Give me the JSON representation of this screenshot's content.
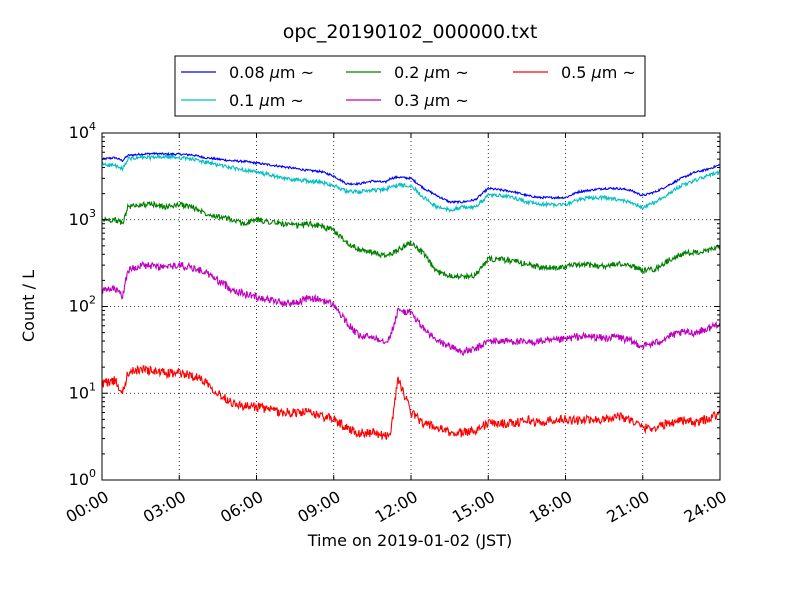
{
  "chart_data": {
    "type": "line",
    "title": "opc_20190102_000000.txt",
    "xlabel": "Time on 2019-01-02 (JST)",
    "ylabel": "Count / L",
    "x_unit": "hours",
    "xlim": [
      0,
      24
    ],
    "ylim": [
      1,
      10000
    ],
    "yscale": "log",
    "grid": true,
    "legend_position": "top-center",
    "x_ticks": [
      0,
      3,
      6,
      9,
      12,
      15,
      18,
      21,
      24
    ],
    "x_tick_labels": [
      "00:00",
      "03:00",
      "06:00",
      "09:00",
      "12:00",
      "15:00",
      "18:00",
      "21:00",
      "24:00"
    ],
    "y_ticks": [
      1,
      10,
      100,
      1000,
      10000
    ],
    "y_tick_labels": [
      {
        "base": "10",
        "exp": "0"
      },
      {
        "base": "10",
        "exp": "1"
      },
      {
        "base": "10",
        "exp": "2"
      },
      {
        "base": "10",
        "exp": "3"
      },
      {
        "base": "10",
        "exp": "4"
      }
    ],
    "x": [
      0,
      0.5,
      0.8,
      1,
      1.5,
      2,
      2.5,
      3,
      3.5,
      4,
      4.5,
      5,
      5.5,
      6,
      6.5,
      7,
      7.5,
      8,
      8.5,
      9,
      9.5,
      10,
      10.5,
      11,
      11.2,
      11.5,
      12,
      12.5,
      13,
      13.5,
      14,
      14.5,
      15,
      15.5,
      16,
      16.5,
      17,
      17.5,
      18,
      18.5,
      19,
      19.5,
      20,
      20.5,
      21,
      21.5,
      22,
      22.5,
      23,
      23.5,
      24
    ],
    "series": [
      {
        "name": "0.08",
        "unit": "μm",
        "suffix": "~",
        "color": "#0000ff",
        "values": [
          5000,
          5200,
          4800,
          5500,
          5700,
          5800,
          5700,
          5700,
          5600,
          5200,
          5000,
          4800,
          4700,
          4500,
          4300,
          4100,
          3900,
          3700,
          3600,
          3200,
          2600,
          2600,
          2800,
          2700,
          3000,
          3100,
          3000,
          2300,
          1900,
          1600,
          1600,
          1700,
          2300,
          2200,
          2100,
          1900,
          1800,
          1800,
          1800,
          2100,
          2200,
          2300,
          2300,
          2200,
          1900,
          2100,
          2500,
          3000,
          3500,
          3800,
          4300
        ]
      },
      {
        "name": "0.1",
        "unit": "μm",
        "suffix": "~",
        "color": "#00bfbf",
        "values": [
          4400,
          4200,
          3800,
          5000,
          5200,
          5200,
          5300,
          5200,
          5000,
          4600,
          4300,
          4000,
          3800,
          3500,
          3300,
          3000,
          2900,
          2800,
          2700,
          2500,
          2100,
          2100,
          2200,
          2200,
          2400,
          2500,
          2500,
          1800,
          1400,
          1300,
          1400,
          1400,
          1900,
          1900,
          1800,
          1600,
          1500,
          1500,
          1500,
          1700,
          1800,
          1800,
          1700,
          1600,
          1400,
          1600,
          2000,
          2500,
          2800,
          3200,
          3500
        ]
      },
      {
        "name": "0.2",
        "unit": "μm",
        "suffix": "~",
        "color": "#008000",
        "values": [
          1000,
          1000,
          900,
          1400,
          1500,
          1500,
          1400,
          1500,
          1400,
          1200,
          1100,
          1000,
          900,
          1000,
          950,
          900,
          850,
          900,
          850,
          750,
          550,
          450,
          420,
          380,
          400,
          450,
          550,
          400,
          250,
          230,
          220,
          230,
          350,
          350,
          330,
          310,
          280,
          280,
          290,
          300,
          300,
          290,
          310,
          300,
          260,
          270,
          340,
          400,
          420,
          430,
          500
        ]
      },
      {
        "name": "0.3",
        "unit": "μm",
        "suffix": "~",
        "color": "#bf00bf",
        "values": [
          150,
          160,
          130,
          260,
          300,
          290,
          280,
          300,
          280,
          250,
          200,
          160,
          140,
          130,
          120,
          110,
          110,
          125,
          120,
          105,
          65,
          45,
          45,
          40,
          45,
          90,
          85,
          55,
          40,
          35,
          30,
          32,
          40,
          40,
          40,
          38,
          40,
          40,
          42,
          45,
          45,
          43,
          45,
          40,
          35,
          38,
          45,
          50,
          50,
          55,
          65
        ]
      },
      {
        "name": "0.5",
        "unit": "μm",
        "suffix": "~",
        "color": "#ff0000",
        "values": [
          13,
          14,
          10,
          17,
          19,
          18,
          17,
          17,
          16,
          14,
          10,
          8,
          7,
          7,
          6.5,
          6,
          6,
          6,
          5.5,
          5,
          4,
          3.5,
          3.5,
          3.2,
          3.5,
          15,
          6,
          4.5,
          4,
          3.5,
          3.5,
          3.8,
          4.5,
          4.5,
          4.5,
          5,
          4.5,
          5,
          5,
          4.8,
          5,
          5,
          5.5,
          5,
          4,
          4,
          4.5,
          5,
          4.5,
          5,
          6
        ]
      }
    ]
  }
}
